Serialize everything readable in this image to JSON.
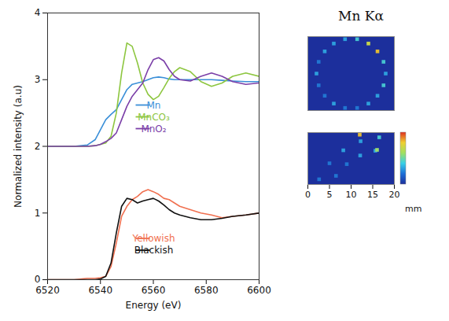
{
  "chart_data": [
    {
      "type": "line",
      "xlabel": "Energy (eV)",
      "ylabel": "Normalized intensity (a.u)",
      "xlim": [
        6520,
        6600
      ],
      "xticks": [
        6520,
        6540,
        6560,
        6580,
        6600
      ],
      "ylim": [
        0,
        4
      ],
      "yticks": [
        0,
        1,
        2,
        3,
        4
      ],
      "legend": "center",
      "x": [
        6520,
        6525,
        6530,
        6535,
        6538,
        6540,
        6542,
        6544,
        6546,
        6548,
        6550,
        6552,
        6554,
        6556,
        6558,
        6560,
        6562,
        6564,
        6566,
        6568,
        6570,
        6574,
        6578,
        6582,
        6586,
        6590,
        6595,
        6600
      ],
      "series": [
        {
          "name": "Mn",
          "color": "#3a8fd8",
          "values": [
            2,
            2,
            2,
            2.02,
            2.1,
            2.25,
            2.4,
            2.48,
            2.55,
            2.7,
            2.85,
            2.93,
            2.95,
            2.97,
            3.0,
            3.03,
            3.04,
            3.03,
            3.01,
            3.0,
            3.0,
            3.0,
            3.0,
            3.0,
            2.99,
            2.98,
            2.97,
            2.97
          ]
        },
        {
          "name": "MnCO₃",
          "color": "#8dc63f",
          "values": [
            2,
            2,
            2,
            2,
            2.01,
            2.03,
            2.05,
            2.15,
            2.5,
            3.1,
            3.55,
            3.5,
            3.25,
            2.95,
            2.78,
            2.7,
            2.75,
            2.88,
            3.02,
            3.12,
            3.18,
            3.12,
            2.97,
            2.9,
            2.95,
            3.05,
            3.1,
            3.05
          ]
        },
        {
          "name": "MnO₂",
          "color": "#7b3fa8",
          "values": [
            2,
            2,
            2,
            2,
            2.01,
            2.03,
            2.07,
            2.12,
            2.2,
            2.4,
            2.6,
            2.75,
            2.85,
            2.95,
            3.15,
            3.3,
            3.33,
            3.28,
            3.15,
            3.05,
            3.0,
            2.98,
            3.05,
            3.1,
            3.05,
            2.97,
            2.93,
            2.95
          ]
        },
        {
          "name": "Yellowish",
          "color": "#f07050",
          "values": [
            0,
            0,
            0,
            0.02,
            0.02,
            0.03,
            0.05,
            0.2,
            0.55,
            0.95,
            1.1,
            1.2,
            1.25,
            1.32,
            1.35,
            1.32,
            1.28,
            1.22,
            1.2,
            1.15,
            1.1,
            1.05,
            1.0,
            0.97,
            0.93,
            0.95,
            0.97,
            1.0
          ]
        },
        {
          "name": "Blackish",
          "color": "#111111",
          "values": [
            0,
            0,
            0,
            0,
            0,
            0.01,
            0.05,
            0.25,
            0.7,
            1.1,
            1.22,
            1.2,
            1.15,
            1.18,
            1.2,
            1.22,
            1.18,
            1.12,
            1.05,
            1.0,
            0.97,
            0.93,
            0.9,
            0.9,
            0.92,
            0.95,
            0.97,
            1.0
          ]
        }
      ]
    },
    {
      "type": "heatmap",
      "title": "Mn Kα",
      "xlim": [
        0,
        20
      ],
      "ylim": [
        0,
        17
      ],
      "tick_labels": false,
      "color_range": [
        0,
        5
      ],
      "points": [
        [
          18,
          8.5,
          1.5
        ],
        [
          17.5,
          11.2,
          2
        ],
        [
          16.1,
          13.6,
          4
        ],
        [
          14,
          15.4,
          3.5
        ],
        [
          11.4,
          16.4,
          2
        ],
        [
          8.6,
          16.4,
          1.5
        ],
        [
          6,
          15.4,
          1.5
        ],
        [
          3.9,
          13.6,
          1.5
        ],
        [
          2.5,
          11.2,
          1
        ],
        [
          2,
          8.5,
          1.5
        ],
        [
          2.5,
          5.8,
          1
        ],
        [
          3.9,
          3.4,
          1
        ],
        [
          6,
          1.6,
          1.5
        ],
        [
          8.6,
          0.6,
          1
        ],
        [
          11.4,
          0.6,
          1
        ],
        [
          14,
          1.6,
          1.5
        ],
        [
          16.1,
          3.4,
          1.5
        ],
        [
          17.5,
          5.8,
          2
        ]
      ]
    },
    {
      "type": "heatmap",
      "xlabel": "mm",
      "xlim": [
        0,
        20
      ],
      "xticks": [
        0,
        5,
        10,
        15,
        20
      ],
      "ylim": [
        0,
        12
      ],
      "tick_labels": "x",
      "color_range": [
        0,
        5
      ],
      "points": [
        [
          15.6,
          7.8,
          1.5
        ],
        [
          12.1,
          6.7,
          1.5
        ],
        [
          9,
          4.7,
          1
        ],
        [
          6.5,
          2,
          1
        ],
        [
          16.5,
          10.9,
          2
        ],
        [
          12.2,
          10,
          1.5
        ],
        [
          8.2,
          7.9,
          1.5
        ],
        [
          5,
          4.9,
          1
        ],
        [
          2.6,
          1.2,
          1
        ],
        [
          12,
          11.5,
          4
        ],
        [
          16,
          8,
          3
        ]
      ]
    }
  ]
}
